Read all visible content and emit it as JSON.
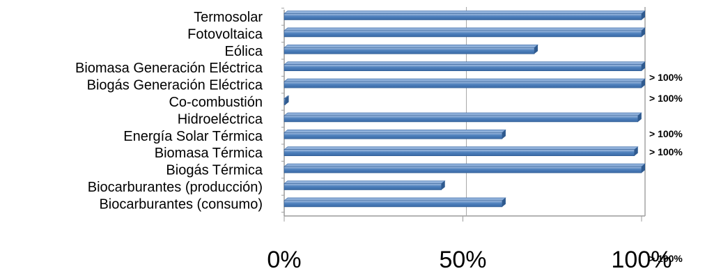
{
  "chart_data": {
    "type": "bar",
    "orientation": "horizontal",
    "style": "3d",
    "categories": [
      "Termosolar",
      "Fotovoltaica",
      "Eólica",
      "Biomasa Generación Eléctrica",
      "Biogás Generación Eléctrica",
      "Co-combustión",
      "Hidroeléctrica",
      "Energía Solar Térmica",
      "Biomasa Térmica",
      "Biogás Térmica",
      "Biocarburantes (producción)",
      "Biocarburantes (consumo)"
    ],
    "values": [
      100,
      100,
      70,
      100,
      100,
      0.3,
      99,
      61,
      98,
      100,
      44,
      61
    ],
    "xlim": [
      0,
      100
    ],
    "xticks": [
      "0%",
      "50%",
      "100%"
    ],
    "grid": true,
    "legend": "none",
    "bar_color": "#4f81bd",
    "annotations": [
      "> 100%",
      "> 100%",
      "> 100%",
      "> 100%",
      "> 100%"
    ]
  }
}
